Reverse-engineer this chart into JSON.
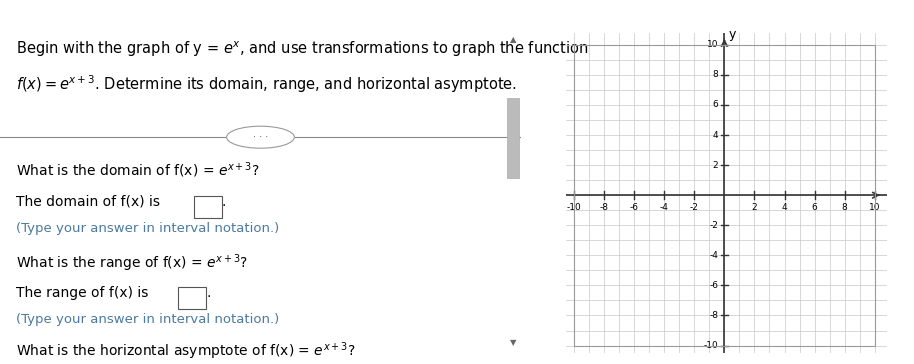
{
  "top_bar_color": "#a31a2e",
  "bg_color": "#ffffff",
  "text_color": "#000000",
  "teal_color": "#4b7a9e",
  "grid_color": "#c8c8c8",
  "axis_color": "#333333",
  "xmin": -10,
  "xmax": 10,
  "ymin": -10,
  "ymax": 10,
  "xticks": [
    -10,
    -8,
    -6,
    -4,
    -2,
    2,
    4,
    6,
    8,
    10
  ],
  "yticks": [
    -10,
    -8,
    -6,
    -4,
    -2,
    2,
    4,
    6,
    8,
    10
  ],
  "font_size_body": 10,
  "font_size_title": 10.5,
  "line1": "Begin with the graph of y = $e^x$, and use transformations to graph the function",
  "line2": "$f(x) = e^{x+3}$. Determine its domain, range, and horizontal asymptote.",
  "q1": "What is the domain of f(x) = $e^{x+3}$?",
  "domain_label": "The domain of f(x) is",
  "interval_note": "(Type your answer in interval notation.)",
  "q2": "What is the range of f(x) = $e^{x+3}$?",
  "range_label": "The range of f(x) is",
  "interval_note2": "(Type your answer in interval notation.)",
  "q3": "What is the horizontal asymptote of f(x) = $e^{x+3}$?"
}
